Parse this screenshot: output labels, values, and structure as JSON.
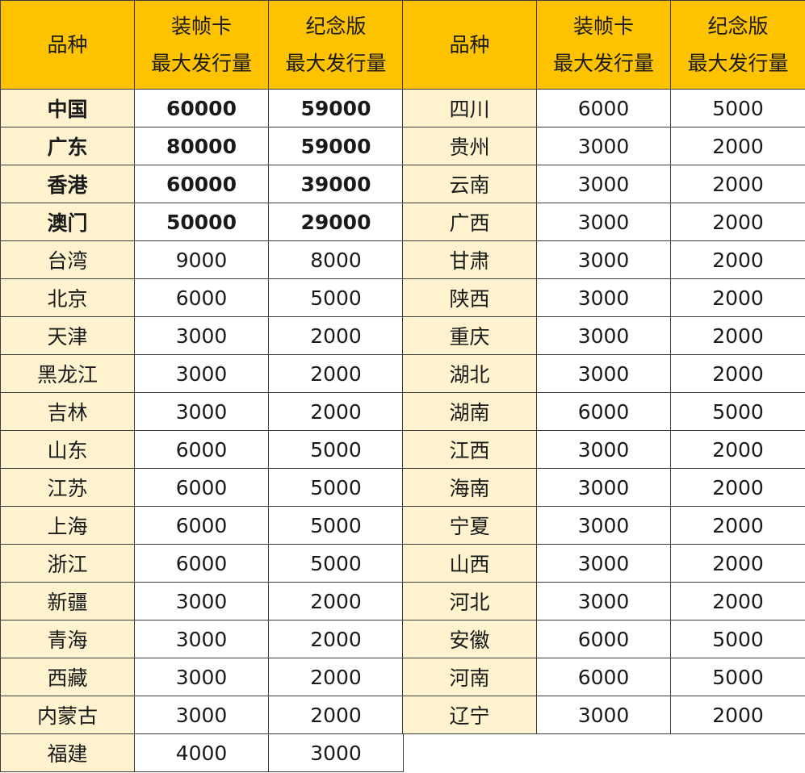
{
  "header": {
    "col1": "品种",
    "col2": [
      "装帧卡",
      "最大发行量"
    ],
    "col3": [
      "纪念版",
      "最大发行量"
    ]
  },
  "left_rows": [
    {
      "name": "中国",
      "card": "60000",
      "memorial": "59000",
      "bold": true
    },
    {
      "name": "广东",
      "card": "80000",
      "memorial": "59000",
      "bold": true
    },
    {
      "name": "香港",
      "card": "60000",
      "memorial": "39000",
      "bold": true
    },
    {
      "name": "澳门",
      "card": "50000",
      "memorial": "29000",
      "bold": true
    },
    {
      "name": "台湾",
      "card": "9000",
      "memorial": "8000",
      "bold": false
    },
    {
      "name": "北京",
      "card": "6000",
      "memorial": "5000",
      "bold": false
    },
    {
      "name": "天津",
      "card": "3000",
      "memorial": "2000",
      "bold": false
    },
    {
      "name": "黑龙江",
      "card": "3000",
      "memorial": "2000",
      "bold": false
    },
    {
      "name": "吉林",
      "card": "3000",
      "memorial": "2000",
      "bold": false
    },
    {
      "name": "山东",
      "card": "6000",
      "memorial": "5000",
      "bold": false
    },
    {
      "name": "江苏",
      "card": "6000",
      "memorial": "5000",
      "bold": false
    },
    {
      "name": "上海",
      "card": "6000",
      "memorial": "5000",
      "bold": false
    },
    {
      "name": "浙江",
      "card": "6000",
      "memorial": "5000",
      "bold": false
    },
    {
      "name": "新疆",
      "card": "3000",
      "memorial": "2000",
      "bold": false
    },
    {
      "name": "青海",
      "card": "3000",
      "memorial": "2000",
      "bold": false
    },
    {
      "name": "西藏",
      "card": "3000",
      "memorial": "2000",
      "bold": false
    },
    {
      "name": "内蒙古",
      "card": "3000",
      "memorial": "2000",
      "bold": false
    },
    {
      "name": "福建",
      "card": "4000",
      "memorial": "3000",
      "bold": false
    }
  ],
  "right_rows": [
    {
      "name": "四川",
      "card": "6000",
      "memorial": "5000"
    },
    {
      "name": "贵州",
      "card": "3000",
      "memorial": "2000"
    },
    {
      "name": "云南",
      "card": "3000",
      "memorial": "2000"
    },
    {
      "name": "广西",
      "card": "3000",
      "memorial": "2000"
    },
    {
      "name": "甘肃",
      "card": "3000",
      "memorial": "2000"
    },
    {
      "name": "陕西",
      "card": "3000",
      "memorial": "2000"
    },
    {
      "name": "重庆",
      "card": "3000",
      "memorial": "2000"
    },
    {
      "name": "湖北",
      "card": "3000",
      "memorial": "2000"
    },
    {
      "name": "湖南",
      "card": "6000",
      "memorial": "5000"
    },
    {
      "name": "江西",
      "card": "3000",
      "memorial": "2000"
    },
    {
      "name": "海南",
      "card": "3000",
      "memorial": "2000"
    },
    {
      "name": "宁夏",
      "card": "3000",
      "memorial": "2000"
    },
    {
      "name": "山西",
      "card": "3000",
      "memorial": "2000"
    },
    {
      "name": "河北",
      "card": "3000",
      "memorial": "2000"
    },
    {
      "name": "安徽",
      "card": "6000",
      "memorial": "5000"
    },
    {
      "name": "河南",
      "card": "6000",
      "memorial": "5000"
    },
    {
      "name": "辽宁",
      "card": "3000",
      "memorial": "2000"
    }
  ],
  "colors": {
    "header_bg": "#fdc300",
    "name_bg": "#fff3cf",
    "border": "#3c3c3c"
  }
}
